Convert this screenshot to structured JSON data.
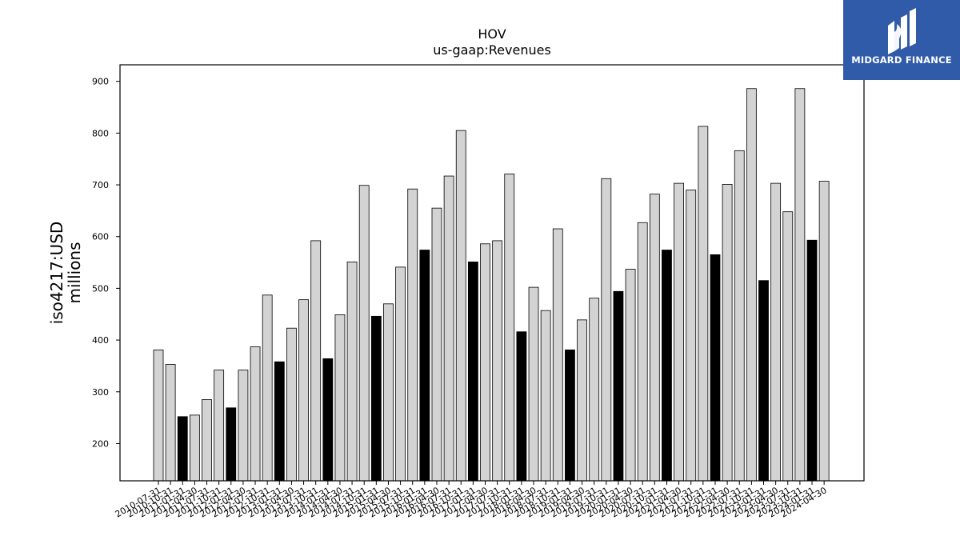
{
  "chart_data": {
    "type": "bar",
    "title": "HOV",
    "subtitle": "us-gaap:Revenues",
    "ylabel_line1": "iso4217:USD",
    "ylabel_line2": "millions",
    "ylim": [
      128,
      932
    ],
    "yticks": [
      200,
      300,
      400,
      500,
      600,
      700,
      800,
      900
    ],
    "grid": false,
    "categories": [
      "2010-07-31",
      "2010-10-31",
      "2011-01-31",
      "2011-04-30",
      "2011-07-31",
      "2011-10-31",
      "2012-01-31",
      "2012-04-30",
      "2012-07-31",
      "2012-10-31",
      "2013-01-31",
      "2013-04-30",
      "2013-07-31",
      "2013-10-31",
      "2014-01-31",
      "2014-04-30",
      "2014-07-31",
      "2014-10-31",
      "2015-01-31",
      "2015-04-30",
      "2015-07-31",
      "2015-10-31",
      "2016-01-31",
      "2016-04-30",
      "2016-07-31",
      "2016-10-31",
      "2017-01-31",
      "2017-04-30",
      "2017-07-31",
      "2017-10-31",
      "2018-01-31",
      "2018-04-30",
      "2018-07-31",
      "2018-10-31",
      "2019-01-31",
      "2019-04-30",
      "2019-07-31",
      "2019-10-31",
      "2020-01-31",
      "2020-04-30",
      "2020-07-31",
      "2020-10-31",
      "2021-01-31",
      "2021-04-30",
      "2021-07-31",
      "2021-10-31",
      "2022-01-31",
      "2022-04-30",
      "2022-07-31",
      "2022-10-31",
      "2023-01-31",
      "2023-04-30",
      "2023-07-31",
      "2023-10-31",
      "2024-01-31",
      "2024-04-30"
    ],
    "values": [
      381,
      353,
      252,
      255,
      285,
      342,
      269,
      342,
      387,
      487,
      358,
      423,
      478,
      592,
      364,
      449,
      551,
      699,
      446,
      470,
      541,
      692,
      574,
      655,
      717,
      805,
      551,
      586,
      592,
      721,
      416,
      502,
      457,
      615,
      381,
      439,
      481,
      712,
      494,
      537,
      627,
      682,
      574,
      703,
      690,
      813,
      565,
      701,
      766,
      886,
      515,
      703,
      648,
      886,
      593,
      707
    ],
    "highlighted": [
      false,
      false,
      true,
      false,
      false,
      false,
      true,
      false,
      false,
      false,
      true,
      false,
      false,
      false,
      true,
      false,
      false,
      false,
      true,
      false,
      false,
      false,
      true,
      false,
      false,
      false,
      true,
      false,
      false,
      false,
      true,
      false,
      false,
      false,
      true,
      false,
      false,
      false,
      true,
      false,
      false,
      false,
      true,
      false,
      false,
      false,
      true,
      false,
      false,
      false,
      true,
      false,
      false,
      false,
      true,
      false
    ],
    "colors": {
      "bar_fill": "#d3d3d3",
      "bar_highlight": "#000000",
      "bar_edge": "#000000"
    }
  },
  "logo": {
    "text": "MIDGARD FINANCE",
    "background": "#2f5ba8"
  }
}
